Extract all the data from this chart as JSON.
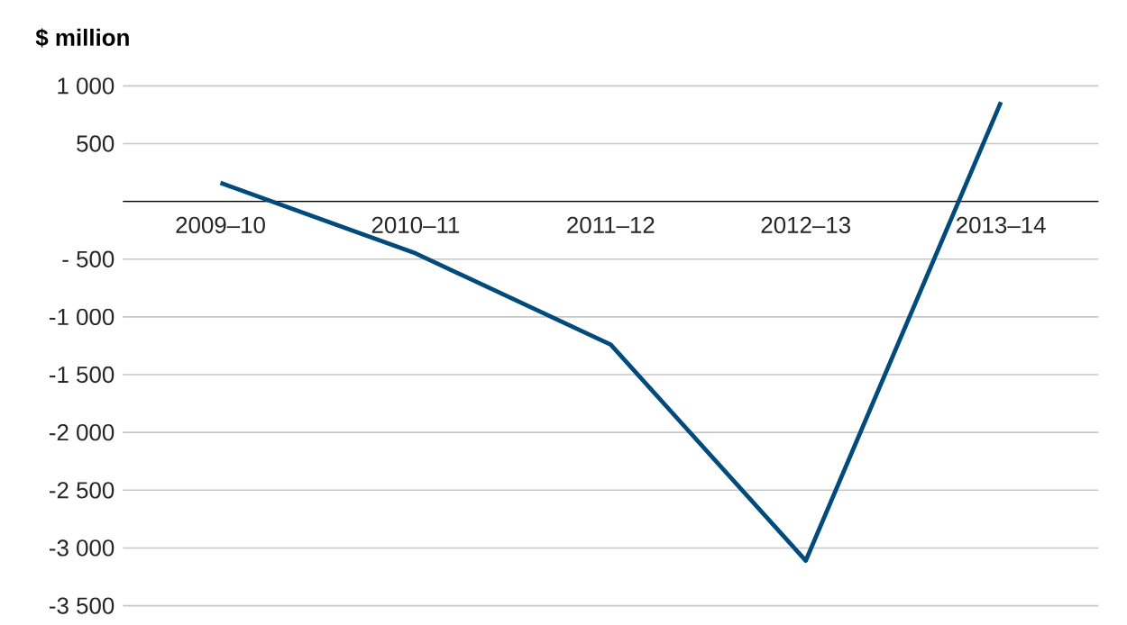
{
  "chart_data": {
    "type": "line",
    "ylabel": "$ million",
    "categories": [
      "2009–10",
      "2010–11",
      "2011–12",
      "2012–13",
      "2013–14"
    ],
    "series": [
      {
        "color": "#004a7c",
        "values": [
          160,
          -450,
          -1240,
          -3110,
          860
        ]
      }
    ],
    "ylim": [
      -3500,
      1000
    ],
    "yticks": [
      {
        "value": 1000,
        "label": "1 000"
      },
      500,
      {
        "value": 0,
        "label": null
      },
      {
        "value": -500,
        "label": "- 500"
      },
      {
        "value": -1000,
        "label": "-1 000"
      },
      {
        "value": -1500,
        "label": "-1 500"
      },
      {
        "value": -2000,
        "label": "-2 000"
      },
      {
        "value": -2500,
        "label": "-2 500"
      },
      {
        "value": -3000,
        "label": "-3 000"
      },
      {
        "value": -3500,
        "label": "-3 500"
      }
    ],
    "grid": "y",
    "marker": "none",
    "line_style": "solid"
  }
}
